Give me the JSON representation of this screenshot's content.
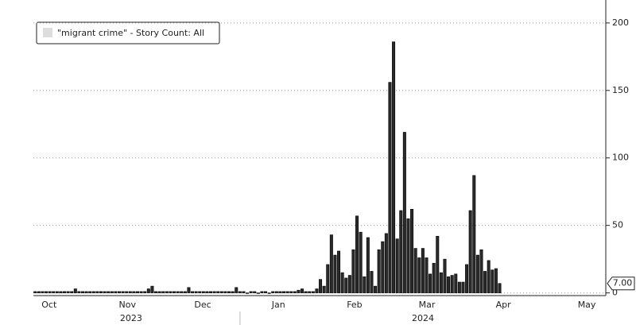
{
  "chart_data": {
    "type": "bar",
    "series": [
      {
        "name": "\"migrant crime\" - Story Count: All",
        "color": "#2a2a2a",
        "values": [
          1,
          1,
          1,
          1,
          1,
          1,
          1,
          1,
          1,
          1,
          1,
          3,
          1,
          1,
          1,
          1,
          1,
          1,
          1,
          1,
          1,
          1,
          1,
          1,
          1,
          1,
          1,
          1,
          1,
          1,
          1,
          3,
          5,
          1,
          1,
          1,
          1,
          1,
          1,
          1,
          1,
          1,
          4,
          1,
          1,
          1,
          1,
          1,
          1,
          1,
          1,
          1,
          1,
          1,
          1,
          4,
          1,
          1,
          0,
          1,
          1,
          0,
          1,
          1,
          0,
          1,
          1,
          1,
          1,
          1,
          1,
          1,
          2,
          3,
          1,
          1,
          1,
          3,
          10,
          5,
          21,
          43,
          28,
          31,
          15,
          11,
          13,
          32,
          57,
          45,
          12,
          41,
          16,
          5,
          32,
          38,
          44,
          156,
          186,
          40,
          61,
          119,
          55,
          62,
          33,
          26,
          33,
          26,
          14,
          22,
          42,
          15,
          25,
          12,
          13,
          14,
          8,
          8,
          21,
          61,
          87,
          28,
          32,
          16,
          24,
          17,
          18,
          7
        ]
      }
    ],
    "last_value_label": "7.00",
    "xlim": [
      0,
      156.5
    ],
    "xticks": [
      {
        "value": 4.3,
        "label": "Oct"
      },
      {
        "value": 25.7,
        "label": "Nov"
      },
      {
        "value": 46.3,
        "label": "Dec"
      },
      {
        "value": 67,
        "label": "Jan"
      },
      {
        "value": 87.8,
        "label": "Feb"
      },
      {
        "value": 107.6,
        "label": "Mar"
      },
      {
        "value": 128.5,
        "label": "Apr"
      },
      {
        "value": 151.3,
        "label": "May"
      }
    ],
    "year_ticks": [
      {
        "value": 26.7,
        "label": "2023"
      },
      {
        "value": 106.5,
        "label": "2024"
      }
    ],
    "year_separators": [
      56.5
    ],
    "ylim": [
      -2,
      217
    ],
    "yticks": [
      0,
      50,
      100,
      150,
      200
    ],
    "grid": true,
    "legend": "top-left"
  }
}
